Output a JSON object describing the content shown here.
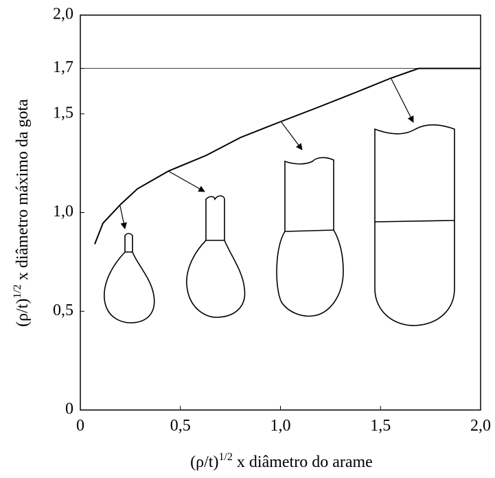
{
  "chart_data": {
    "type": "line",
    "xlabel": {
      "base": "(ρ/t)",
      "sup": "1/2",
      "rest": " x diâmetro do arame"
    },
    "ylabel": {
      "base": "(ρ/t)",
      "sup": "1/2",
      "rest": " x diâmetro máximo da gota"
    },
    "series": [
      {
        "color": "#000000",
        "x": [
          0.072,
          0.113,
          0.2,
          0.285,
          0.44,
          0.63,
          0.8,
          1.0,
          1.18,
          1.38,
          1.55,
          1.69,
          2.0
        ],
        "values": [
          0.84,
          0.946,
          1.04,
          1.12,
          1.21,
          1.29,
          1.38,
          1.46,
          1.53,
          1.61,
          1.68,
          1.73,
          1.73
        ]
      }
    ],
    "hline": 1.73,
    "xlim": [
      0,
      2.0
    ],
    "ylim": [
      0,
      2.0
    ],
    "xticks": [
      0,
      {
        "value": 0.5,
        "label": "0,5"
      },
      {
        "value": 1.0,
        "label": "1,0"
      },
      {
        "value": 1.5,
        "label": "1,5"
      },
      {
        "value": 2.0,
        "label": "2,0"
      }
    ],
    "yticks": [
      0,
      {
        "value": 0.5,
        "label": "0,5"
      },
      {
        "value": 1.0,
        "label": "1,0"
      },
      {
        "value": 1.5,
        "label": "1,5"
      },
      {
        "value": 1.73,
        "label": "1,7"
      },
      {
        "value": 2.0,
        "label": "2,0"
      }
    ],
    "grid": false
  }
}
